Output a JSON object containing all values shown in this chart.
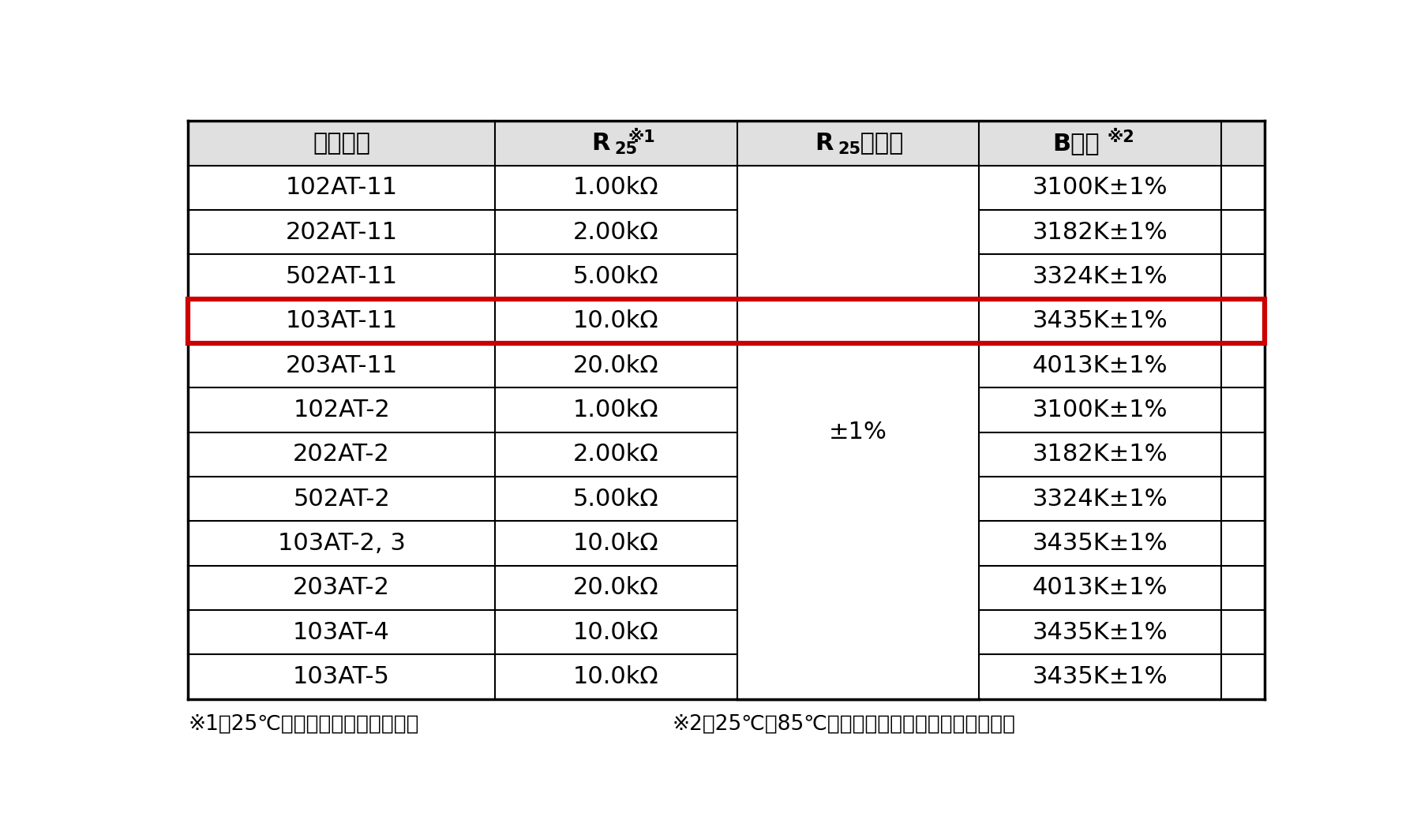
{
  "rows": [
    [
      "102AT-11",
      "1.00kΩ",
      "3100K±1%"
    ],
    [
      "202AT-11",
      "2.00kΩ",
      "3182K±1%"
    ],
    [
      "502AT-11",
      "5.00kΩ",
      "3324K±1%"
    ],
    [
      "103AT-11",
      "10.0kΩ",
      "3435K±1%"
    ],
    [
      "203AT-11",
      "20.0kΩ",
      "4013K±1%"
    ],
    [
      "102AT-2",
      "1.00kΩ",
      "3100K±1%"
    ],
    [
      "202AT-2",
      "2.00kΩ",
      "3182K±1%"
    ],
    [
      "502AT-2",
      "5.00kΩ",
      "3324K±1%"
    ],
    [
      "103AT-2, 3",
      "10.0kΩ",
      "3435K±1%"
    ],
    [
      "203AT-2",
      "20.0kΩ",
      "4013K±1%"
    ],
    [
      "103AT-4",
      "10.0kΩ",
      "3435K±1%"
    ],
    [
      "103AT-5",
      "10.0kΩ",
      "3435K±1%"
    ]
  ],
  "highlight_row": 3,
  "highlight_color": "#cc0000",
  "merged_col2_text": "±1%",
  "footnote1": "※1：25℃におけるゼロ負荷抗抗値",
  "footnote2": "※2：25℃、85℃におけるゼロ負荷抗抗値より算出",
  "header_bg": "#e0e0e0",
  "bg_color": "#ffffff",
  "border_color": "#000000",
  "text_color": "#000000",
  "font_size": 22,
  "sub_font_size": 15,
  "footnote_font_size": 19
}
